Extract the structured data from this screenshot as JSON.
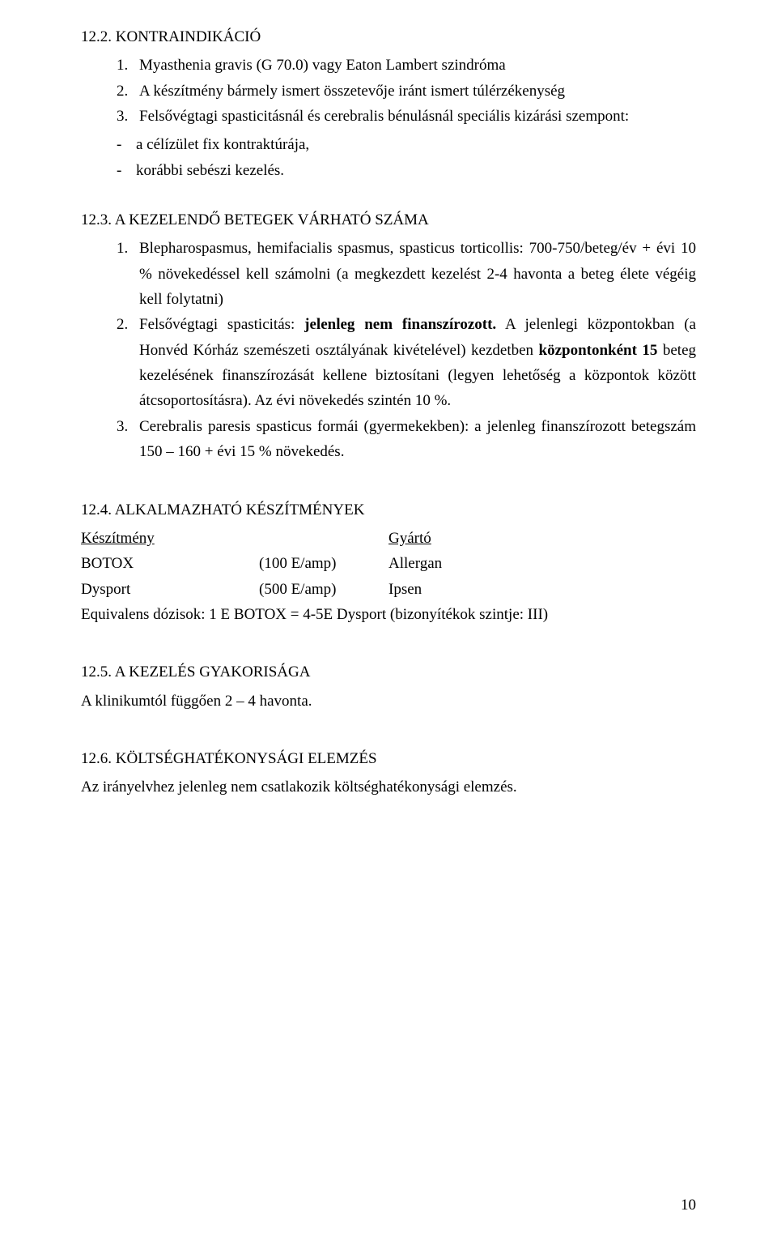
{
  "s122": {
    "heading": "12.2. KONTRAINDIKÁCIÓ",
    "items": [
      "Myasthenia gravis (G 70.0) vagy Eaton Lambert szindróma",
      "A készítmény bármely ismert összetevője iránt ismert túlérzékenység",
      "Felsővégtagi spasticitásnál és cerebralis bénulásnál speciális kizárási szempont:"
    ],
    "subitems": [
      "a célízület fix kontraktúrája,",
      "korábbi sebészi kezelés."
    ]
  },
  "s123": {
    "heading": "12.3. A KEZELENDŐ BETEGEK VÁRHATÓ SZÁMA",
    "items": [
      {
        "text": "Blepharospasmus, hemifacialis spasmus, spasticus torticollis: 700-750/beteg/év + évi 10 % növekedéssel kell számolni (a megkezdett kezelést 2-4 havonta a beteg élete végéig kell folytatni)"
      },
      {
        "prefix": "Felsővégtagi spasticitás: ",
        "bold1": "jelenleg nem finanszírozott.",
        "mid": " A jelenlegi központokban (a Honvéd Kórház szemészeti osztályának kivételével) kezdetben ",
        "bold2": "központonként 15",
        "suffix": " beteg kezelésének finanszírozását kellene biztosítani (legyen lehetőség a központok között átcsoportosításra). Az évi növekedés szintén 10 %."
      },
      {
        "text": "Cerebralis paresis spasticus formái (gyermekekben): a jelenleg finanszírozott betegszám 150 – 160 + évi 15 % növekedés."
      }
    ]
  },
  "s124": {
    "heading": "12.4. ALKALMAZHATÓ KÉSZÍTMÉNYEK",
    "col_headers": {
      "a": "Készítmény",
      "b": "",
      "c": "Gyártó"
    },
    "rows": [
      {
        "a": "BOTOX",
        "b": "(100 E/amp)",
        "c": "Allergan"
      },
      {
        "a": "Dysport",
        "b": "(500 E/amp)",
        "c": "Ipsen"
      }
    ],
    "eq": "Equivalens dózisok: 1 E BOTOX =  4-5E Dysport (bizonyítékok szintje: III)"
  },
  "s125": {
    "heading": "12.5. A KEZELÉS GYAKORISÁGA",
    "text": "A klinikumtól függően 2 – 4 havonta."
  },
  "s126": {
    "heading": "12.6. KÖLTSÉGHATÉKONYSÁGI ELEMZÉS",
    "text": "Az irányelvhez jelenleg nem csatlakozik költséghatékonysági elemzés."
  },
  "page_number": "10"
}
